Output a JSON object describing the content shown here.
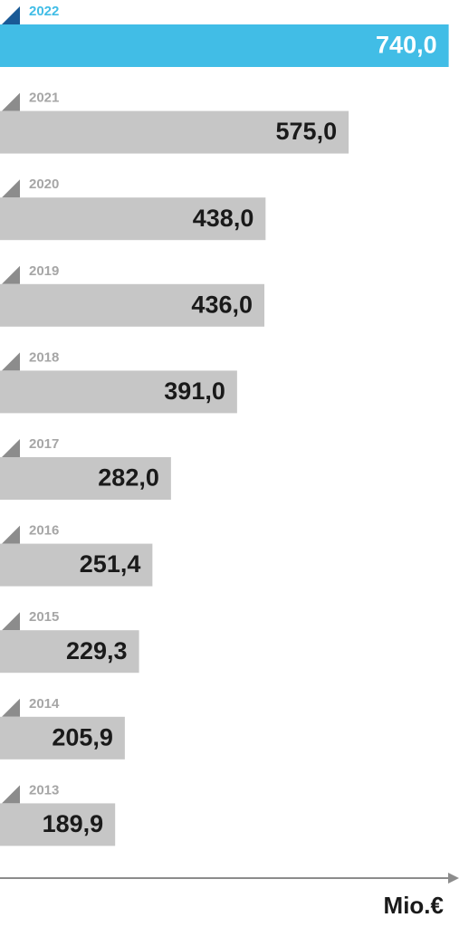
{
  "chart_data": {
    "type": "hbar",
    "x_label": "Mio.€",
    "categories": [
      "2022",
      "2021",
      "2020",
      "2019",
      "2018",
      "2017",
      "2016",
      "2015",
      "2014",
      "2013"
    ],
    "values": [
      740.0,
      575.0,
      438.0,
      436.0,
      391.0,
      282.0,
      251.4,
      229.3,
      205.9,
      189.9
    ],
    "value_labels": [
      "740,0",
      "575,0",
      "438,0",
      "436,0",
      "391,0",
      "282,0",
      "251,4",
      "229,3",
      "205,9",
      "189,9"
    ],
    "xlim": [
      0,
      757
    ],
    "color": "#c6c6c6",
    "highlight_index": 0,
    "highlight_color": "#41bde6"
  }
}
